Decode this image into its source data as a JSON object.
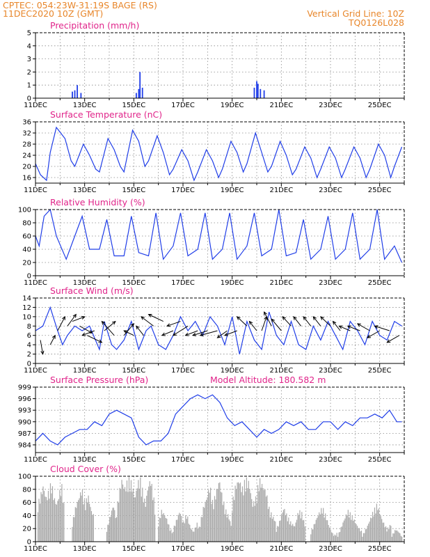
{
  "header": {
    "line1_left": "CPTEC:   054:23W-31:19S   BAGE (RS)",
    "line2_left": "11DEC2020 10Z (GMT)",
    "line2_right": "Vertical Grid Line: 10Z",
    "line3_right": "TQ0126L028"
  },
  "x_ticks": [
    "11DEC",
    "13DEC",
    "15DEC",
    "17DEC",
    "19DEC",
    "21DEC",
    "23DEC",
    "25DEC"
  ],
  "colors": {
    "line": "#1f3de8",
    "bars": "#aaaaaa",
    "title": "#e0248a",
    "header": "#e8862a",
    "arrows": "#000000"
  },
  "chart_data": [
    {
      "type": "bar",
      "title": "Precipitation (mm/h)",
      "ylim": [
        0,
        5
      ],
      "yticks": [
        0,
        1,
        2,
        3,
        4,
        5
      ],
      "x": [
        1.5,
        1.6,
        1.7,
        1.85,
        4.1,
        4.2,
        4.25,
        4.35,
        8.9,
        9.0,
        9.05,
        9.15,
        9.3
      ],
      "values": [
        0.5,
        0.6,
        1.0,
        0.4,
        0.4,
        0.7,
        2.0,
        0.8,
        0.8,
        1.3,
        1.1,
        0.7,
        0.6
      ]
    },
    {
      "type": "line",
      "title": "Surface Temperature (nC)",
      "ylim": [
        14,
        36
      ],
      "yticks": [
        16,
        20,
        24,
        28,
        32,
        36
      ],
      "x": [
        0,
        0.2,
        0.45,
        0.6,
        0.85,
        1.2,
        1.45,
        1.6,
        1.95,
        2.2,
        2.45,
        2.6,
        2.95,
        3.2,
        3.45,
        3.6,
        3.95,
        4.2,
        4.45,
        4.6,
        4.95,
        5.2,
        5.45,
        5.6,
        5.95,
        6.2,
        6.45,
        6.6,
        6.95,
        7.2,
        7.45,
        7.6,
        7.95,
        8.2,
        8.45,
        8.6,
        8.95,
        9.2,
        9.45,
        9.6,
        9.95,
        10.2,
        10.45,
        10.6,
        10.95,
        11.2,
        11.45,
        11.6,
        11.95,
        12.2,
        12.45,
        12.6,
        12.95,
        13.2,
        13.45,
        13.6,
        13.95,
        14.2,
        14.45,
        14.6,
        14.9
      ],
      "values": [
        21,
        17,
        15,
        25,
        34,
        30,
        22,
        20,
        28,
        24,
        19,
        18,
        30,
        26,
        20,
        18,
        33,
        29,
        20,
        22,
        31,
        25,
        17,
        19,
        26,
        22,
        15,
        18,
        26,
        22,
        16,
        19,
        29,
        25,
        18,
        21,
        32,
        25,
        18,
        20,
        29,
        24,
        17,
        19,
        27,
        23,
        16,
        19,
        27,
        23,
        16,
        19,
        27,
        23,
        16,
        19,
        28,
        24,
        16,
        20,
        27
      ]
    },
    {
      "type": "line",
      "title": "Relative Humidity (%)",
      "ylim": [
        0,
        100
      ],
      "yticks": [
        0,
        20,
        40,
        60,
        80,
        100
      ],
      "x": [
        0,
        0.15,
        0.35,
        0.6,
        0.85,
        1.25,
        1.6,
        1.9,
        2.2,
        2.6,
        2.9,
        3.2,
        3.6,
        3.9,
        4.2,
        4.6,
        4.9,
        5.2,
        5.6,
        5.9,
        6.2,
        6.6,
        6.9,
        7.2,
        7.6,
        7.9,
        8.2,
        8.6,
        8.9,
        9.2,
        9.6,
        9.9,
        10.2,
        10.6,
        10.9,
        11.2,
        11.6,
        11.9,
        12.2,
        12.6,
        12.9,
        13.2,
        13.6,
        13.9,
        14.2,
        14.6,
        14.9
      ],
      "values": [
        60,
        45,
        90,
        100,
        60,
        25,
        60,
        90,
        40,
        40,
        85,
        30,
        30,
        90,
        35,
        30,
        95,
        25,
        45,
        95,
        30,
        40,
        95,
        25,
        40,
        95,
        25,
        45,
        95,
        30,
        40,
        100,
        30,
        35,
        85,
        25,
        40,
        90,
        25,
        40,
        95,
        25,
        40,
        100,
        25,
        45,
        20
      ]
    },
    {
      "type": "line",
      "title": "Surface Wind (m/s)",
      "ylim": [
        0,
        14
      ],
      "yticks": [
        0,
        2,
        4,
        6,
        8,
        10,
        12,
        14
      ],
      "x": [
        0,
        0.3,
        0.6,
        0.9,
        1.1,
        1.3,
        1.6,
        1.9,
        2.2,
        2.6,
        2.8,
        3.1,
        3.3,
        3.6,
        3.9,
        4.2,
        4.5,
        4.7,
        5.0,
        5.3,
        5.6,
        5.9,
        6.2,
        6.5,
        6.8,
        7.1,
        7.4,
        7.7,
        8.0,
        8.3,
        8.6,
        8.9,
        9.2,
        9.5,
        9.8,
        10.1,
        10.4,
        10.7,
        11.0,
        11.3,
        11.6,
        11.9,
        12.2,
        12.5,
        12.8,
        13.1,
        13.4,
        13.7,
        14.0,
        14.3,
        14.6,
        14.9
      ],
      "values": [
        7,
        8,
        12,
        7,
        4,
        6,
        8,
        7,
        8,
        3,
        9,
        4,
        3,
        5,
        9,
        3,
        7,
        8,
        4,
        3,
        6,
        10,
        7,
        9,
        6,
        10,
        8,
        4,
        10,
        2,
        9,
        5,
        3,
        11,
        6,
        4,
        9,
        4,
        3,
        8,
        5,
        9,
        6,
        3,
        9,
        7,
        4,
        9,
        6,
        5,
        9,
        8
      ]
    },
    {
      "type": "line",
      "title": "Surface Pressure (hPa)",
      "annotation": "Model Altitude: 180.582  m",
      "ylim": [
        982,
        999
      ],
      "yticks": [
        984,
        987,
        990,
        993,
        996,
        999
      ],
      "x": [
        0,
        0.3,
        0.6,
        0.9,
        1.2,
        1.5,
        1.8,
        2.1,
        2.4,
        2.7,
        3.0,
        3.3,
        3.6,
        3.9,
        4.2,
        4.5,
        4.8,
        5.1,
        5.4,
        5.7,
        6.0,
        6.3,
        6.6,
        6.9,
        7.2,
        7.5,
        7.8,
        8.1,
        8.4,
        8.7,
        9.0,
        9.3,
        9.6,
        9.9,
        10.2,
        10.5,
        10.8,
        11.1,
        11.4,
        11.7,
        12.0,
        12.3,
        12.6,
        12.9,
        13.2,
        13.5,
        13.8,
        14.1,
        14.4,
        14.7,
        14.9
      ],
      "values": [
        985,
        987,
        985,
        984,
        986,
        987,
        988,
        988,
        990,
        989,
        992,
        993,
        992,
        991,
        986,
        984,
        985,
        985,
        987,
        992,
        994,
        996,
        997,
        996,
        997,
        995,
        991,
        989,
        990,
        988,
        986,
        988,
        987,
        988,
        990,
        989,
        990,
        988,
        988,
        990,
        990,
        988,
        990,
        989,
        991,
        991,
        992,
        991,
        993,
        990,
        990
      ]
    },
    {
      "type": "bar",
      "title": "Cloud Cover (%)",
      "ylim": [
        0,
        100
      ],
      "yticks": [
        0,
        20,
        40,
        60,
        80,
        100
      ],
      "segments": [
        {
          "start": 0.1,
          "end": 1.2,
          "values": [
            60,
            75,
            90,
            70,
            80,
            95,
            70,
            60,
            80,
            90,
            40
          ]
        },
        {
          "start": 1.5,
          "end": 2.4,
          "values": [
            30,
            55,
            70,
            85,
            60,
            75,
            50,
            40
          ]
        },
        {
          "start": 2.9,
          "end": 3.3,
          "values": [
            20,
            40,
            60,
            35
          ]
        },
        {
          "start": 3.3,
          "end": 4.9,
          "values": [
            50,
            80,
            100,
            85,
            95,
            100,
            90,
            70,
            95,
            100,
            80,
            60,
            90,
            100,
            75,
            40
          ]
        },
        {
          "start": 5.0,
          "end": 5.6,
          "values": [
            30,
            50,
            45,
            35,
            20,
            15
          ]
        },
        {
          "start": 5.6,
          "end": 6.7,
          "values": [
            20,
            35,
            50,
            30,
            45,
            25,
            15,
            30,
            20
          ]
        },
        {
          "start": 6.7,
          "end": 8.0,
          "values": [
            30,
            55,
            70,
            90,
            60,
            80,
            100,
            70,
            50,
            40,
            20
          ]
        },
        {
          "start": 8.0,
          "end": 9.8,
          "values": [
            60,
            90,
            100,
            85,
            100,
            95,
            60,
            70,
            100,
            90,
            80,
            50,
            40,
            30
          ]
        },
        {
          "start": 9.8,
          "end": 11.0,
          "values": [
            20,
            35,
            55,
            40,
            30,
            25,
            50,
            45,
            20
          ]
        },
        {
          "start": 11.2,
          "end": 12.3,
          "values": [
            15,
            30,
            45,
            55,
            40,
            20,
            10,
            15
          ]
        },
        {
          "start": 12.3,
          "end": 13.3,
          "values": [
            10,
            30,
            50,
            40,
            25,
            15
          ]
        },
        {
          "start": 13.3,
          "end": 14.5,
          "values": [
            10,
            25,
            45,
            60,
            35,
            20,
            30
          ]
        },
        {
          "start": 14.5,
          "end": 14.95,
          "values": [
            10,
            20,
            15,
            5
          ]
        }
      ]
    }
  ],
  "wind_vectors": {
    "x": [
      0.2,
      0.6,
      0.9,
      1.3,
      1.5,
      1.8,
      2.1,
      2.4,
      2.8,
      3.2,
      3.6,
      4.0,
      4.4,
      4.8,
      5.2,
      5.6,
      5.9,
      6.2,
      6.6,
      7.0,
      7.4,
      7.8,
      8.2,
      8.6,
      9.0,
      9.2,
      9.6,
      10.0,
      10.4,
      10.8,
      11.2,
      11.6,
      12.0,
      12.4,
      12.8,
      13.2,
      13.6,
      14.0,
      14.4,
      14.8
    ],
    "y": [
      5,
      4,
      7,
      8,
      9,
      8,
      6,
      7,
      7,
      6,
      6,
      6,
      6,
      8,
      9,
      7,
      9,
      8,
      7,
      7,
      7,
      7,
      7,
      8,
      7,
      7,
      8,
      7,
      8,
      8,
      8,
      8,
      8,
      7,
      7,
      7,
      7,
      7,
      7,
      6
    ],
    "dx": [
      0.1,
      0.2,
      0.3,
      0.35,
      0.5,
      0.5,
      0.6,
      -0.5,
      0.45,
      -0.5,
      0.4,
      -0.4,
      -0.3,
      -0.5,
      -0.6,
      -0.45,
      -0.55,
      -0.6,
      -0.5,
      -0.6,
      -0.7,
      -0.4,
      -0.5,
      -0.4,
      -0.3,
      0.2,
      -0.3,
      -0.4,
      -0.35,
      -0.3,
      -0.3,
      -0.3,
      -0.4,
      -0.3,
      -0.45,
      -0.5,
      -0.5,
      -0.5,
      -0.6,
      -0.5
    ],
    "dy": [
      -3,
      2,
      3,
      2.5,
      1,
      -1.5,
      -1.5,
      -1,
      2,
      3,
      2.5,
      1,
      2,
      2,
      1.5,
      -1,
      -1,
      -2,
      -1,
      -1,
      -1,
      -1.5,
      -1,
      2,
      2,
      3,
      3,
      2.5,
      2,
      2,
      2,
      2,
      2,
      2,
      1,
      1,
      1.5,
      -1.5,
      1,
      -1.5
    ]
  }
}
